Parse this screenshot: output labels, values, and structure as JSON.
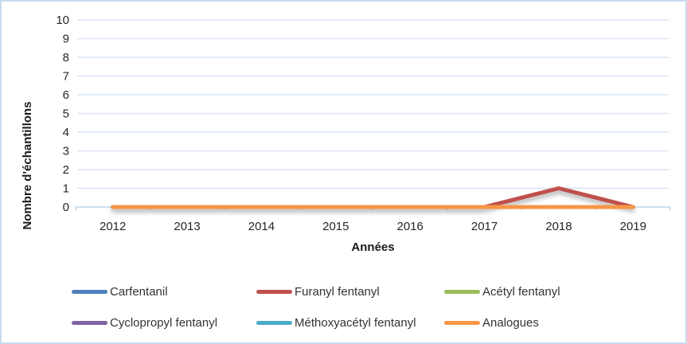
{
  "chart_data": {
    "type": "line",
    "categories": [
      "2012",
      "2013",
      "2014",
      "2015",
      "2016",
      "2017",
      "2018",
      "2019"
    ],
    "series": [
      {
        "name": "Carfentanil",
        "color": "#4F81BD",
        "values": [
          0,
          0,
          0,
          0,
          0,
          0,
          0,
          0
        ],
        "shadow": false
      },
      {
        "name": "Furanyl fentanyl",
        "color": "#C0504D",
        "values": [
          0,
          0,
          0,
          0,
          0,
          0,
          1,
          0
        ],
        "shadow": true
      },
      {
        "name": "Acétyl fentanyl",
        "color": "#9BBB59",
        "values": [
          0,
          0,
          0,
          0,
          0,
          0,
          0,
          0
        ],
        "shadow": false
      },
      {
        "name": "Cyclopropyl fentanyl",
        "color": "#8064A2",
        "values": [
          0,
          0,
          0,
          0,
          0,
          0,
          0,
          0
        ],
        "shadow": false
      },
      {
        "name": "Méthoxyacétyl fentanyl",
        "color": "#4BACC6",
        "values": [
          0,
          0,
          0,
          0,
          0,
          0,
          0,
          0
        ],
        "shadow": false
      },
      {
        "name": "Analogues",
        "color": "#F79646",
        "values": [
          0,
          0,
          0,
          0,
          0,
          0,
          0,
          0
        ],
        "shadow": false
      }
    ],
    "title": "",
    "xlabel": "Années",
    "ylabel": "Nombre d'échantillons",
    "ylim": [
      0,
      10
    ],
    "yticks": [
      0,
      1,
      2,
      3,
      4,
      5,
      6,
      7,
      8,
      9,
      10
    ],
    "grid": true,
    "legend_position": "bottom",
    "colors": {
      "gridline": "#D9E2F3",
      "axis_line": "#C3D5EC",
      "frame_border": "#C9DBF2",
      "tick_label": "#262626",
      "axis_title": "#1A1A1A",
      "legend_text": "#333333"
    }
  }
}
